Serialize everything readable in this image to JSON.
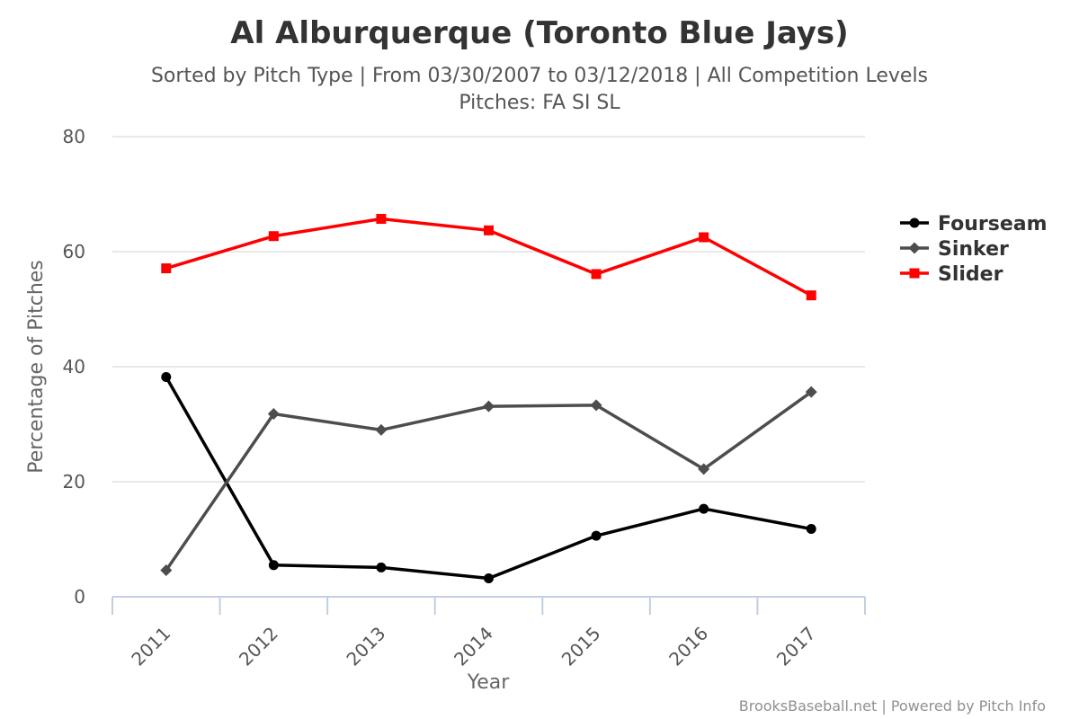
{
  "chart_data": {
    "type": "line",
    "title": "Al Alburquerque (Toronto Blue Jays)",
    "subtitle": [
      "Sorted by Pitch Type | From 03/30/2007 to 03/12/2018 | All Competition Levels",
      "Pitches: FA SI SL"
    ],
    "xlabel": "Year",
    "ylabel": "Percentage of Pitches",
    "categories": [
      "2011",
      "2012",
      "2013",
      "2014",
      "2015",
      "2016",
      "2017"
    ],
    "ylim": [
      0,
      80
    ],
    "yticks": [
      0,
      20,
      40,
      60,
      80
    ],
    "grid": true,
    "legend_position": "right",
    "series": [
      {
        "name": "Fourseam",
        "marker": "circle",
        "color": "#000000",
        "values": [
          38.2,
          5.5,
          5.1,
          3.2,
          10.6,
          15.3,
          11.8
        ]
      },
      {
        "name": "Sinker",
        "marker": "diamond",
        "color": "#4d4d4d",
        "values": [
          4.6,
          31.8,
          29.0,
          33.1,
          33.3,
          22.2,
          35.6
        ]
      },
      {
        "name": "Slider",
        "marker": "square",
        "color": "#ff0000",
        "values": [
          57.1,
          62.7,
          65.7,
          63.7,
          56.1,
          62.5,
          52.4
        ]
      }
    ],
    "credits": "BrooksBaseball.net | Powered by Pitch Info"
  }
}
